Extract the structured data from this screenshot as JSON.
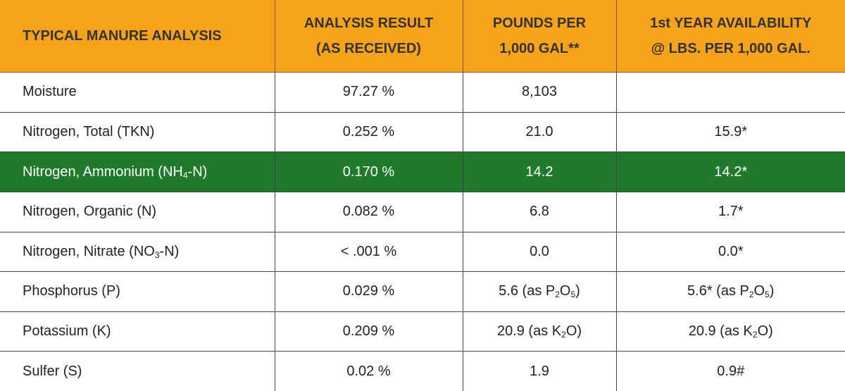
{
  "header": {
    "col1": "TYPICAL MANURE ANALYSIS",
    "col2": [
      "ANALYSIS RESULT",
      "(AS RECEIVED)"
    ],
    "col3": [
      "POUNDS PER",
      "1,000 GAL**"
    ],
    "col4": [
      "1st YEAR AVAILABILITY",
      "@ LBS. PER 1,000 GAL."
    ]
  },
  "colors": {
    "header_bg": "#f7a21b",
    "highlight_bg": "#207a2c",
    "highlight_text": "#ffffff"
  },
  "rows": [
    {
      "label": [
        "Moisture"
      ],
      "result": "97.27 %",
      "pounds": [
        "8,103"
      ],
      "avail": [
        ""
      ]
    },
    {
      "label": [
        "Nitrogen, Total (TKN)"
      ],
      "result": "0.252 %",
      "pounds": [
        "21.0"
      ],
      "avail": [
        "15.9*"
      ]
    },
    {
      "label": [
        "Nitrogen, Ammonium (NH",
        "4",
        "-N)"
      ],
      "result": "0.170 %",
      "pounds": [
        "14.2"
      ],
      "avail": [
        "14.2*"
      ],
      "highlight": true
    },
    {
      "label": [
        "Nitrogen, Organic (N)"
      ],
      "result": "0.082 %",
      "pounds": [
        "6.8"
      ],
      "avail": [
        "1.7*"
      ]
    },
    {
      "label": [
        "Nitrogen, Nitrate (NO",
        "3",
        "-N)"
      ],
      "result": "< .001 %",
      "pounds": [
        "0.0"
      ],
      "avail": [
        "0.0*"
      ]
    },
    {
      "label": [
        "Phosphorus (P)"
      ],
      "result": "0.029 %",
      "pounds": [
        "5.6 (as P",
        "2",
        "O",
        "5",
        ")"
      ],
      "avail": [
        "5.6* (as P",
        "2",
        "O",
        "5",
        ")"
      ]
    },
    {
      "label": [
        "Potassium (K)"
      ],
      "result": "0.209 %",
      "pounds": [
        "20.9 (as K",
        "2",
        "O)"
      ],
      "avail": [
        "20.9 (as K",
        "2",
        "O)"
      ]
    },
    {
      "label": [
        "Sulfer (S)"
      ],
      "result": "0.02 %",
      "pounds": [
        "1.9"
      ],
      "avail": [
        "0.9#"
      ]
    }
  ]
}
